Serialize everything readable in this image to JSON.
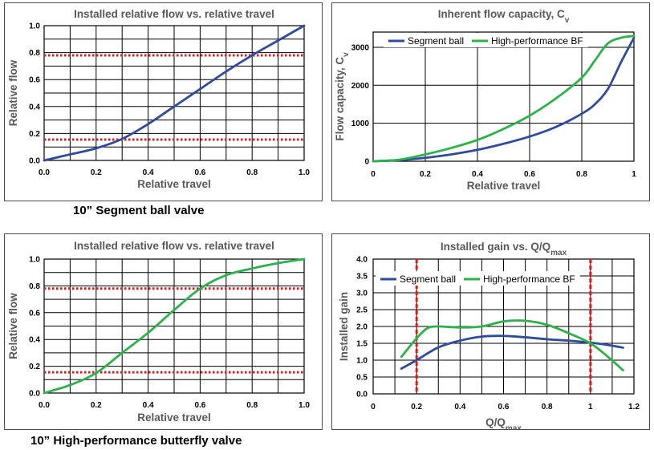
{
  "captions": {
    "segment_ball": "10” Segment ball valve",
    "butterfly": "10” High-performance butterfly valve"
  },
  "colors": {
    "segment_ball": "#2f4b9e",
    "high_performance_bf": "#2bb34a",
    "limit_lines": "#e01b1b"
  },
  "chart_data": [
    {
      "id": "chart1",
      "type": "line",
      "title": "Installed relative flow vs. relative travel",
      "xlabel": "Relative travel",
      "ylabel": "Relative flow",
      "xlim": [
        0,
        1
      ],
      "ylim": [
        0,
        1
      ],
      "xticks": [
        0,
        0.2,
        0.4,
        0.6,
        0.8,
        1
      ],
      "xtick_labels": [
        "0.0",
        "0.2",
        "0.4",
        "0.6",
        "0.8",
        "1.0"
      ],
      "yticks": [
        0,
        0.2,
        0.4,
        0.6,
        0.8,
        1
      ],
      "ytick_labels": [
        "0.0",
        "0.2",
        "0.4",
        "0.6",
        "0.8",
        "1.0"
      ],
      "grid_x_step": 0.1,
      "grid_y_step": 0.1,
      "grid": true,
      "legend": false,
      "hlines": [
        0.78,
        0.155
      ],
      "vlines": [],
      "series": [
        {
          "color": "#2f4b9e",
          "x": [
            0,
            0.1,
            0.2,
            0.3,
            0.4,
            0.5,
            0.6,
            0.7,
            0.8,
            0.9,
            1.0
          ],
          "y": [
            0,
            0.045,
            0.09,
            0.16,
            0.27,
            0.4,
            0.53,
            0.66,
            0.78,
            0.89,
            1.0
          ]
        }
      ]
    },
    {
      "id": "chart2",
      "type": "line",
      "title": "Inherent flow capacity, C",
      "title_sub": "v",
      "xlabel": "Relative travel",
      "ylabel": "Flow capacity, C",
      "ylabel_sub": "v",
      "xlim": [
        0,
        1
      ],
      "ylim": [
        0,
        3400
      ],
      "xticks": [
        0,
        0.2,
        0.4,
        0.6,
        0.8,
        1
      ],
      "xtick_labels": [
        "0",
        "0.2",
        "0.4",
        "0.6",
        "0.8",
        "1"
      ],
      "yticks": [
        0,
        1000,
        2000,
        3000
      ],
      "ytick_labels": [
        "0",
        "1000",
        "2000",
        "3000"
      ],
      "grid_x_step": 0.2,
      "grid_y_step": 1000,
      "grid": true,
      "legend": true,
      "legend_position": "top",
      "hlines": [],
      "vlines": [],
      "series": [
        {
          "name": "Segment ball",
          "color": "#2f4b9e",
          "x": [
            0,
            0.1,
            0.2,
            0.3,
            0.4,
            0.5,
            0.6,
            0.7,
            0.8,
            0.85,
            0.9,
            0.95,
            1.0
          ],
          "y": [
            0,
            30,
            90,
            180,
            300,
            460,
            650,
            900,
            1250,
            1500,
            1900,
            2600,
            3250
          ]
        },
        {
          "name": "High-performance BF",
          "color": "#2bb34a",
          "x": [
            0,
            0.1,
            0.2,
            0.3,
            0.4,
            0.5,
            0.6,
            0.7,
            0.8,
            0.85,
            0.9,
            0.95,
            1.0
          ],
          "y": [
            0,
            40,
            180,
            350,
            560,
            850,
            1200,
            1650,
            2200,
            2650,
            3100,
            3250,
            3300
          ]
        }
      ]
    },
    {
      "id": "chart3",
      "type": "line",
      "title": "Installed relative flow vs. relative travel",
      "xlabel": "Relative travel",
      "ylabel": "Relative flow",
      "xlim": [
        0,
        1
      ],
      "ylim": [
        0,
        1
      ],
      "xticks": [
        0,
        0.2,
        0.4,
        0.6,
        0.8,
        1
      ],
      "xtick_labels": [
        "0.0",
        "0.2",
        "0.4",
        "0.6",
        "0.8",
        "1.0"
      ],
      "yticks": [
        0,
        0.2,
        0.4,
        0.6,
        0.8,
        1
      ],
      "ytick_labels": [
        "0.0",
        "0.2",
        "0.4",
        "0.6",
        "0.8",
        "1.0"
      ],
      "grid_x_step": 0.1,
      "grid_y_step": 0.1,
      "grid": true,
      "legend": false,
      "hlines": [
        0.78,
        0.155
      ],
      "vlines": [],
      "series": [
        {
          "color": "#2bb34a",
          "x": [
            0,
            0.1,
            0.2,
            0.3,
            0.4,
            0.5,
            0.6,
            0.7,
            0.8,
            0.9,
            1.0
          ],
          "y": [
            0,
            0.06,
            0.15,
            0.3,
            0.45,
            0.62,
            0.78,
            0.88,
            0.93,
            0.97,
            1.0
          ]
        }
      ]
    },
    {
      "id": "chart4",
      "type": "line",
      "title": "Installed gain vs. Q/Q",
      "title_sub": "max",
      "xlabel": "Q/Q",
      "xlabel_sub": "max",
      "ylabel": "Installed gain",
      "xlim": [
        0,
        1.2
      ],
      "ylim": [
        0,
        4
      ],
      "xticks": [
        0,
        0.2,
        0.4,
        0.6,
        0.8,
        1,
        1.2
      ],
      "xtick_labels": [
        "0",
        "0.2",
        "0.4",
        "0.6",
        "0.8",
        "1",
        "1.2"
      ],
      "yticks": [
        0,
        0.5,
        1,
        1.5,
        2,
        2.5,
        3,
        3.5,
        4
      ],
      "ytick_labels": [
        "0.0",
        "0.5",
        "1.0",
        "1.5",
        "2.0",
        "2.5",
        "3.0",
        "3.5",
        "4.0"
      ],
      "grid_x_step": 0.1,
      "grid_y_step": 0.5,
      "grid": true,
      "legend": true,
      "legend_position": "top",
      "hlines": [],
      "vlines": [
        0.2,
        1.0
      ],
      "series": [
        {
          "name": "Segment ball",
          "color": "#2f4b9e",
          "x": [
            0.13,
            0.2,
            0.3,
            0.4,
            0.5,
            0.6,
            0.7,
            0.8,
            0.9,
            1.0,
            1.08,
            1.15
          ],
          "y": [
            0.75,
            1.0,
            1.38,
            1.58,
            1.7,
            1.72,
            1.68,
            1.62,
            1.58,
            1.52,
            1.45,
            1.37
          ]
        },
        {
          "name": "High-performance BF",
          "color": "#2bb34a",
          "x": [
            0.13,
            0.2,
            0.25,
            0.3,
            0.4,
            0.5,
            0.6,
            0.7,
            0.8,
            0.9,
            1.0,
            1.08,
            1.15
          ],
          "y": [
            1.1,
            1.65,
            1.95,
            2.0,
            1.97,
            2.0,
            2.15,
            2.17,
            2.05,
            1.8,
            1.5,
            1.1,
            0.7
          ]
        }
      ]
    }
  ]
}
